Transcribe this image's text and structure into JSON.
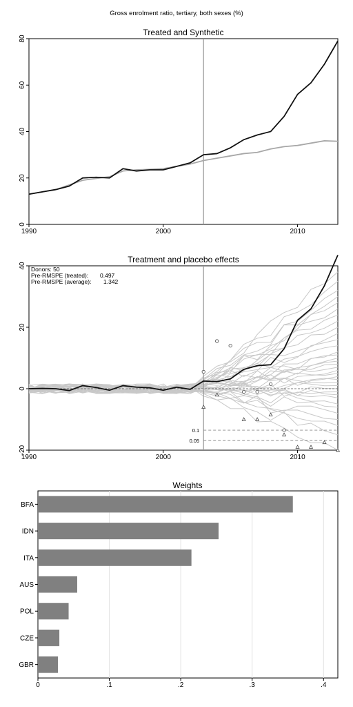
{
  "page_title": "Gross enrolment ratio, tertiary, both sexes (%)",
  "chart_data": [
    {
      "type": "line",
      "title": "Treated and Synthetic",
      "xlabel": "",
      "ylabel": "",
      "xlim": [
        1990,
        2013
      ],
      "ylim": [
        0,
        80
      ],
      "x_ticks": [
        "1990",
        "2000",
        "2010"
      ],
      "y_ticks": [
        "0",
        "20",
        "40",
        "60",
        "80"
      ],
      "treatment_year": 2003,
      "grid": false,
      "x": [
        1990,
        1991,
        1992,
        1993,
        1994,
        1995,
        1996,
        1997,
        1998,
        1999,
        2000,
        2001,
        2002,
        2003,
        2004,
        2005,
        2006,
        2007,
        2008,
        2009,
        2010,
        2011,
        2012,
        2013
      ],
      "series": [
        {
          "color": "#111111",
          "values": [
            13.0,
            14.0,
            15.0,
            16.5,
            20.0,
            20.3,
            20.0,
            24.0,
            23.0,
            23.5,
            23.5,
            25.0,
            26.5,
            30.0,
            30.5,
            33.0,
            36.5,
            38.5,
            40.0,
            46.5,
            56.0,
            61.0,
            69.0,
            79.0
          ]
        },
        {
          "color": "#a8a8a8",
          "values": [
            13.0,
            14.0,
            15.0,
            17.0,
            19.0,
            19.8,
            20.5,
            23.0,
            23.5,
            23.7,
            24.0,
            25.0,
            26.0,
            27.5,
            28.5,
            29.5,
            30.5,
            31.0,
            32.5,
            33.5,
            34.0,
            35.0,
            36.0,
            35.8
          ]
        }
      ]
    },
    {
      "type": "line",
      "title": "Treatment and placebo effects",
      "xlabel": "",
      "ylabel": "",
      "xlim": [
        1990,
        2013
      ],
      "ylim": [
        -20,
        40
      ],
      "x_ticks": [
        "1990",
        "2000",
        "2010"
      ],
      "y_ticks": [
        "-20",
        "0",
        "20",
        "40"
      ],
      "treatment_year": 2003,
      "annotations": {
        "donors": "Donors: 50",
        "rmspe_treated_label": "Pre-RMSPE (treated):",
        "rmspe_treated_value": "0.497",
        "rmspe_average_label": "Pre-RMSPE (average):",
        "rmspe_average_value": "1.342",
        "band_labels": [
          "0.1",
          "0.05"
        ]
      },
      "reference_lines": [
        {
          "name": "0.1",
          "y": -13.5
        },
        {
          "name": "0.05",
          "y": -16.8
        }
      ],
      "x": [
        1990,
        1991,
        1992,
        1993,
        1994,
        1995,
        1996,
        1997,
        1998,
        1999,
        2000,
        2001,
        2002,
        2003,
        2004,
        2005,
        2006,
        2007,
        2008,
        2009,
        2010,
        2011,
        2012,
        2013
      ],
      "treated_values": [
        0.0,
        0.1,
        0.0,
        -0.6,
        1.0,
        0.4,
        -0.5,
        1.0,
        0.5,
        0.3,
        -0.5,
        0.5,
        -0.2,
        2.5,
        2.3,
        3.2,
        6.3,
        7.5,
        7.8,
        13.0,
        22.3,
        26.0,
        33.5,
        43.5
      ],
      "treated_color": "#111111",
      "placebo_color": "#c8c8c8",
      "placebo_endpoints": [
        -20,
        -15,
        -12,
        -10,
        -8,
        -6,
        -5,
        -3,
        -2,
        -1,
        0,
        1,
        2,
        3,
        4,
        5,
        6,
        7,
        8,
        9,
        10,
        11,
        12,
        14,
        16,
        18,
        20,
        22,
        24,
        26,
        28,
        30,
        32,
        35,
        38
      ],
      "circle_markers": [
        [
          2003,
          5.5
        ],
        [
          2004,
          15.5
        ],
        [
          2005,
          14.0
        ],
        [
          2006,
          -1.0
        ],
        [
          2007,
          -1.0
        ],
        [
          2008,
          1.5
        ],
        [
          2009,
          -13.5
        ]
      ],
      "triangle_markers": [
        [
          2003,
          -6.0
        ],
        [
          2004,
          -2.0
        ],
        [
          2006,
          -10.0
        ],
        [
          2007,
          -10.0
        ],
        [
          2008,
          -8.5
        ],
        [
          2009,
          -15.0
        ],
        [
          2010,
          -19.0
        ],
        [
          2011,
          -19.0
        ],
        [
          2012,
          -17.5
        ],
        [
          2013,
          -20.0
        ]
      ]
    },
    {
      "type": "bar",
      "orientation": "horizontal",
      "title": "Weights",
      "categories": [
        "BFA",
        "IDN",
        "ITA",
        "AUS",
        "POL",
        "CZE",
        "GBR"
      ],
      "values": [
        0.357,
        0.253,
        0.215,
        0.055,
        0.043,
        0.03,
        0.028
      ],
      "xlim": [
        0,
        0.42
      ],
      "x_ticks": [
        "0",
        ".1",
        ".2",
        ".3",
        ".4"
      ],
      "bar_color": "#808080",
      "grid": true
    }
  ]
}
